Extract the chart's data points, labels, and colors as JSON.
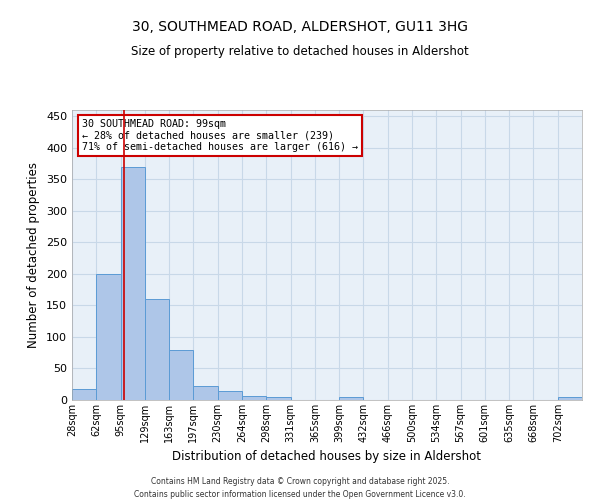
{
  "title": "30, SOUTHMEAD ROAD, ALDERSHOT, GU11 3HG",
  "subtitle": "Size of property relative to detached houses in Aldershot",
  "xlabel": "Distribution of detached houses by size in Aldershot",
  "ylabel": "Number of detached properties",
  "bar_color": "#aec6e8",
  "bar_edge_color": "#5b9bd5",
  "grid_color": "#c8d8e8",
  "background_color": "#e8f0f8",
  "categories": [
    "28sqm",
    "62sqm",
    "95sqm",
    "129sqm",
    "163sqm",
    "197sqm",
    "230sqm",
    "264sqm",
    "298sqm",
    "331sqm",
    "365sqm",
    "399sqm",
    "432sqm",
    "466sqm",
    "500sqm",
    "534sqm",
    "567sqm",
    "601sqm",
    "635sqm",
    "668sqm",
    "702sqm"
  ],
  "values": [
    18,
    200,
    370,
    160,
    80,
    22,
    14,
    7,
    4,
    0,
    0,
    4,
    0,
    0,
    0,
    0,
    0,
    0,
    0,
    0,
    4
  ],
  "property_line_x": 99,
  "property_line_color": "#cc0000",
  "annotation_title": "30 SOUTHMEAD ROAD: 99sqm",
  "annotation_line2": "← 28% of detached houses are smaller (239)",
  "annotation_line3": "71% of semi-detached houses are larger (616) →",
  "annotation_box_color": "#cc0000",
  "ylim": [
    0,
    460
  ],
  "bin_width": 33,
  "footnote1": "Contains HM Land Registry data © Crown copyright and database right 2025.",
  "footnote2": "Contains public sector information licensed under the Open Government Licence v3.0."
}
